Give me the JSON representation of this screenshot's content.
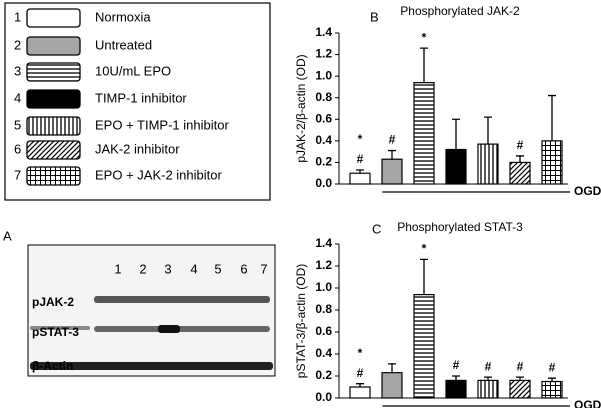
{
  "panel_labels": [
    "A",
    "B",
    "C"
  ],
  "legend": {
    "items": [
      {
        "number": "1",
        "label": "Normoxia",
        "pattern": "white"
      },
      {
        "number": "2",
        "label": "Untreated",
        "pattern": "gray"
      },
      {
        "number": "3",
        "label": "10U/mL EPO",
        "pattern": "hstripe"
      },
      {
        "number": "4",
        "label": "TIMP-1 inhibitor",
        "pattern": "black"
      },
      {
        "number": "5",
        "label": "EPO + TIMP-1 inhibitor",
        "pattern": "vstripe"
      },
      {
        "number": "6",
        "label": "JAK-2 inhibitor",
        "pattern": "diag"
      },
      {
        "number": "7",
        "label": "EPO + JAK-2 inhibitor",
        "pattern": "grid"
      }
    ]
  },
  "blot": {
    "lanes": [
      "1",
      "2",
      "3",
      "4",
      "5",
      "6",
      "7"
    ],
    "rows": [
      "pJAK-2",
      "pSTAT-3",
      "β-Actin"
    ]
  },
  "chart_data": [
    {
      "type": "bar",
      "title": "Phosphorylated JAK-2",
      "y_label": "pJAK-2/β-actin (OD)",
      "values": [
        0.1,
        0.23,
        0.94,
        0.32,
        0.37,
        0.2,
        0.4
      ],
      "errors": [
        0.03,
        0.08,
        0.32,
        0.28,
        0.25,
        0.06,
        0.42
      ],
      "marks": [
        [
          "*",
          "#"
        ],
        [
          "#"
        ],
        [
          "*"
        ],
        [],
        [],
        [
          "#"
        ],
        []
      ],
      "ogd_label": "OGD",
      "ylim": [
        0,
        1.4
      ],
      "yticks": [
        {
          "value": 0,
          "label": "0.0"
        },
        0.2,
        0.4,
        0.6,
        0.8,
        {
          "value": 1,
          "label": "1.0"
        },
        1.2,
        1.4
      ]
    },
    {
      "type": "bar",
      "title": "Phosphorylated STAT-3",
      "y_label": "pSTAT-3/β-actin (OD)",
      "values": [
        0.1,
        0.23,
        0.94,
        0.16,
        0.16,
        0.16,
        0.15
      ],
      "errors": [
        0.03,
        0.08,
        0.32,
        0.04,
        0.03,
        0.03,
        0.03
      ],
      "marks": [
        [
          "*",
          "#"
        ],
        [],
        [
          "*"
        ],
        [
          "#"
        ],
        [
          "#"
        ],
        [
          "#"
        ],
        [
          "#"
        ]
      ],
      "ogd_label": "OGD",
      "ylim": [
        0,
        1.4
      ],
      "yticks": [
        {
          "value": 0,
          "label": "0.0"
        },
        0.2,
        0.4,
        0.6,
        0.8,
        {
          "value": 1,
          "label": "1.0"
        },
        1.2,
        1.4
      ]
    }
  ]
}
